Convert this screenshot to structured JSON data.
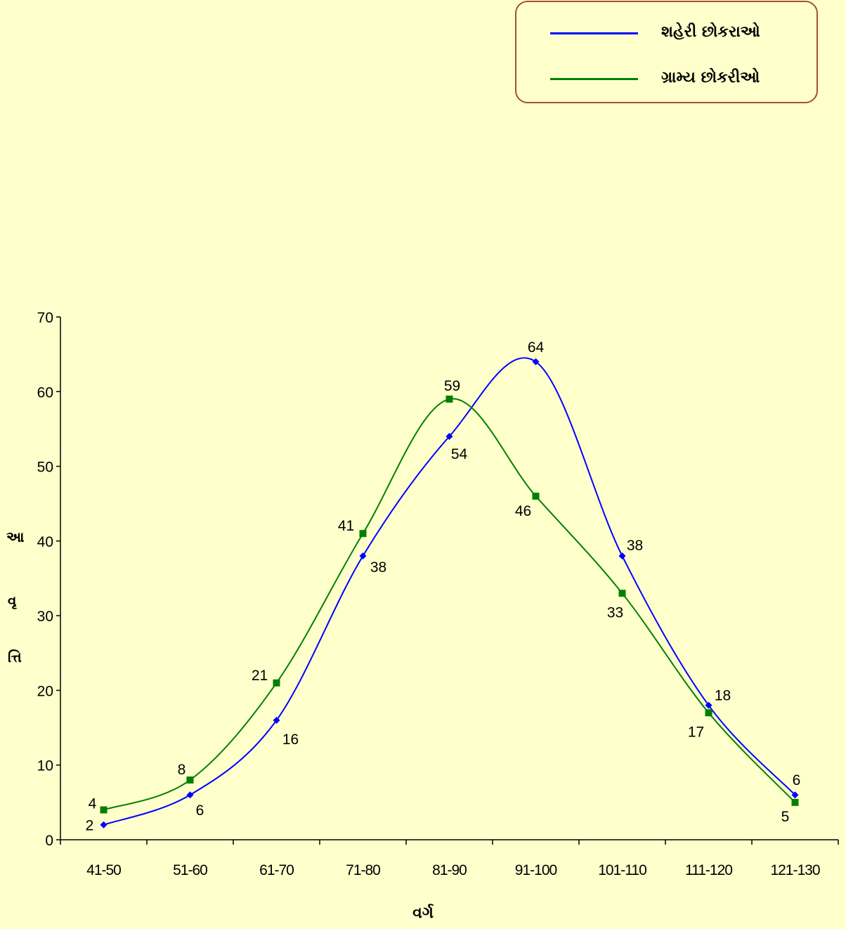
{
  "legend": {
    "items": [
      {
        "label": "શહેરી છોકરાઓ",
        "color": "#0000FF"
      },
      {
        "label": "ગ્રામ્ય છોકરીઓ",
        "color": "#008000"
      }
    ]
  },
  "axes": {
    "ylabel_parts": [
      "આ",
      "વૃ",
      "ત્તિ"
    ],
    "xlabel": "વર્ગ"
  },
  "chart_data": {
    "type": "line",
    "categories": [
      "41-50",
      "51-60",
      "61-70",
      "71-80",
      "81-90",
      "91-100",
      "101-110",
      "111-120",
      "121-130"
    ],
    "series": [
      {
        "name": "શહેરી છોકરાઓ",
        "color": "#0000FF",
        "marker": "diamond",
        "values": [
          2,
          6,
          16,
          38,
          54,
          64,
          38,
          18,
          6
        ]
      },
      {
        "name": "ગ્રામ્ય છોકરીઓ",
        "color": "#008000",
        "marker": "square",
        "values": [
          4,
          8,
          21,
          41,
          59,
          46,
          33,
          17,
          5
        ]
      }
    ],
    "ylim": [
      0,
      70
    ],
    "yticks": [
      0,
      10,
      20,
      30,
      40,
      50,
      60,
      70
    ],
    "xlabel": "વર્ગ",
    "ylabel": "આવૃત્તિ",
    "grid": false,
    "smooth": true
  }
}
